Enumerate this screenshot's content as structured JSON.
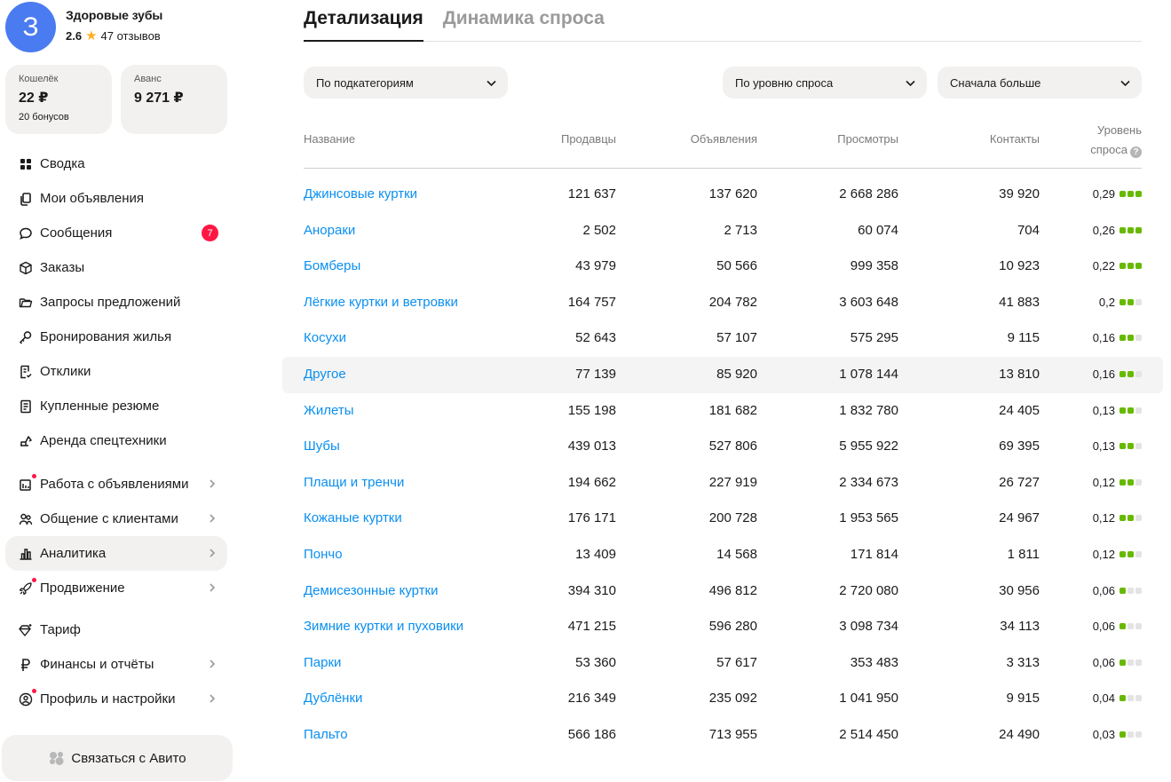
{
  "profile": {
    "avatar_letter": "З",
    "name": "Здоровые зубы",
    "rating": "2.6",
    "reviews": "47 отзывов"
  },
  "wallet": {
    "label": "Кошелёк",
    "value": "22 ₽",
    "bonus": "20 бонусов"
  },
  "advance": {
    "label": "Аванс",
    "value": "9 271 ₽"
  },
  "nav": {
    "summary": "Сводка",
    "my_ads": "Мои объявления",
    "messages": "Сообщения",
    "messages_badge": "7",
    "orders": "Заказы",
    "offer_requests": "Запросы предложений",
    "housing_bookings": "Бронирования жилья",
    "responses": "Отклики",
    "bought_resumes": "Купленные резюме",
    "equipment_rent": "Аренда спецтехники",
    "work_with_ads": "Работа с объявлениями",
    "client_communication": "Общение с клиентами",
    "analytics": "Аналитика",
    "promotion": "Продвижение",
    "tariff": "Тариф",
    "finance": "Финансы и отчёты",
    "profile_settings": "Профиль и настройки"
  },
  "contact_button": "Связаться с Авито",
  "tabs": {
    "details": "Детализация",
    "demand_dynamics": "Динамика спроса"
  },
  "filters": {
    "category": "По подкатегориям",
    "demand_level": "По уровню спроса",
    "sort": "Сначала больше"
  },
  "table": {
    "headers": {
      "name": "Название",
      "sellers": "Продавцы",
      "ads": "Объявления",
      "views": "Просмотры",
      "contacts": "Контакты",
      "demand_line1": "Уровень",
      "demand_line2": "спроса"
    },
    "rows": [
      {
        "name": "Джинсовые куртки",
        "sellers": "121 637",
        "ads": "137 620",
        "views": "2 668 286",
        "contacts": "39 920",
        "demand": "0,29",
        "level": 3
      },
      {
        "name": "Анораки",
        "sellers": "2 502",
        "ads": "2 713",
        "views": "60 074",
        "contacts": "704",
        "demand": "0,26",
        "level": 3
      },
      {
        "name": "Бомберы",
        "sellers": "43 979",
        "ads": "50 566",
        "views": "999 358",
        "contacts": "10 923",
        "demand": "0,22",
        "level": 3
      },
      {
        "name": "Лёгкие куртки и ветровки",
        "sellers": "164 757",
        "ads": "204 782",
        "views": "3 603 648",
        "contacts": "41 883",
        "demand": "0,2",
        "level": 2
      },
      {
        "name": "Косухи",
        "sellers": "52 643",
        "ads": "57 107",
        "views": "575 295",
        "contacts": "9 115",
        "demand": "0,16",
        "level": 2
      },
      {
        "name": "Другое",
        "sellers": "77 139",
        "ads": "85 920",
        "views": "1 078 144",
        "contacts": "13 810",
        "demand": "0,16",
        "level": 2
      },
      {
        "name": "Жилеты",
        "sellers": "155 198",
        "ads": "181 682",
        "views": "1 832 780",
        "contacts": "24 405",
        "demand": "0,13",
        "level": 2
      },
      {
        "name": "Шубы",
        "sellers": "439 013",
        "ads": "527 806",
        "views": "5 955 922",
        "contacts": "69 395",
        "demand": "0,13",
        "level": 2
      },
      {
        "name": "Плащи и тренчи",
        "sellers": "194 662",
        "ads": "227 919",
        "views": "2 334 673",
        "contacts": "26 727",
        "demand": "0,12",
        "level": 2
      },
      {
        "name": "Кожаные куртки",
        "sellers": "176 171",
        "ads": "200 728",
        "views": "1 953 565",
        "contacts": "24 967",
        "demand": "0,12",
        "level": 2
      },
      {
        "name": "Пончо",
        "sellers": "13 409",
        "ads": "14 568",
        "views": "171 814",
        "contacts": "1 811",
        "demand": "0,12",
        "level": 2
      },
      {
        "name": "Демисезонные куртки",
        "sellers": "394 310",
        "ads": "496 812",
        "views": "2 720 080",
        "contacts": "30 956",
        "demand": "0,06",
        "level": 1
      },
      {
        "name": "Зимние куртки и пуховики",
        "sellers": "471 215",
        "ads": "596 280",
        "views": "3 098 734",
        "contacts": "34 113",
        "demand": "0,06",
        "level": 1
      },
      {
        "name": "Парки",
        "sellers": "53 360",
        "ads": "57 617",
        "views": "353 483",
        "contacts": "3 313",
        "demand": "0,06",
        "level": 1
      },
      {
        "name": "Дублёнки",
        "sellers": "216 349",
        "ads": "235 092",
        "views": "1 041 950",
        "contacts": "9 915",
        "demand": "0,04",
        "level": 1
      },
      {
        "name": "Пальто",
        "sellers": "566 186",
        "ads": "713 955",
        "views": "2 514 450",
        "contacts": "24 490",
        "demand": "0,03",
        "level": 1
      }
    ]
  },
  "colors": {
    "link": "#0a8ff0",
    "demand_on": "#67b900",
    "demand_off": "#e3e3e3",
    "badge": "#ff1744",
    "avatar": "#4b7bf0",
    "star": "#ffb021"
  }
}
